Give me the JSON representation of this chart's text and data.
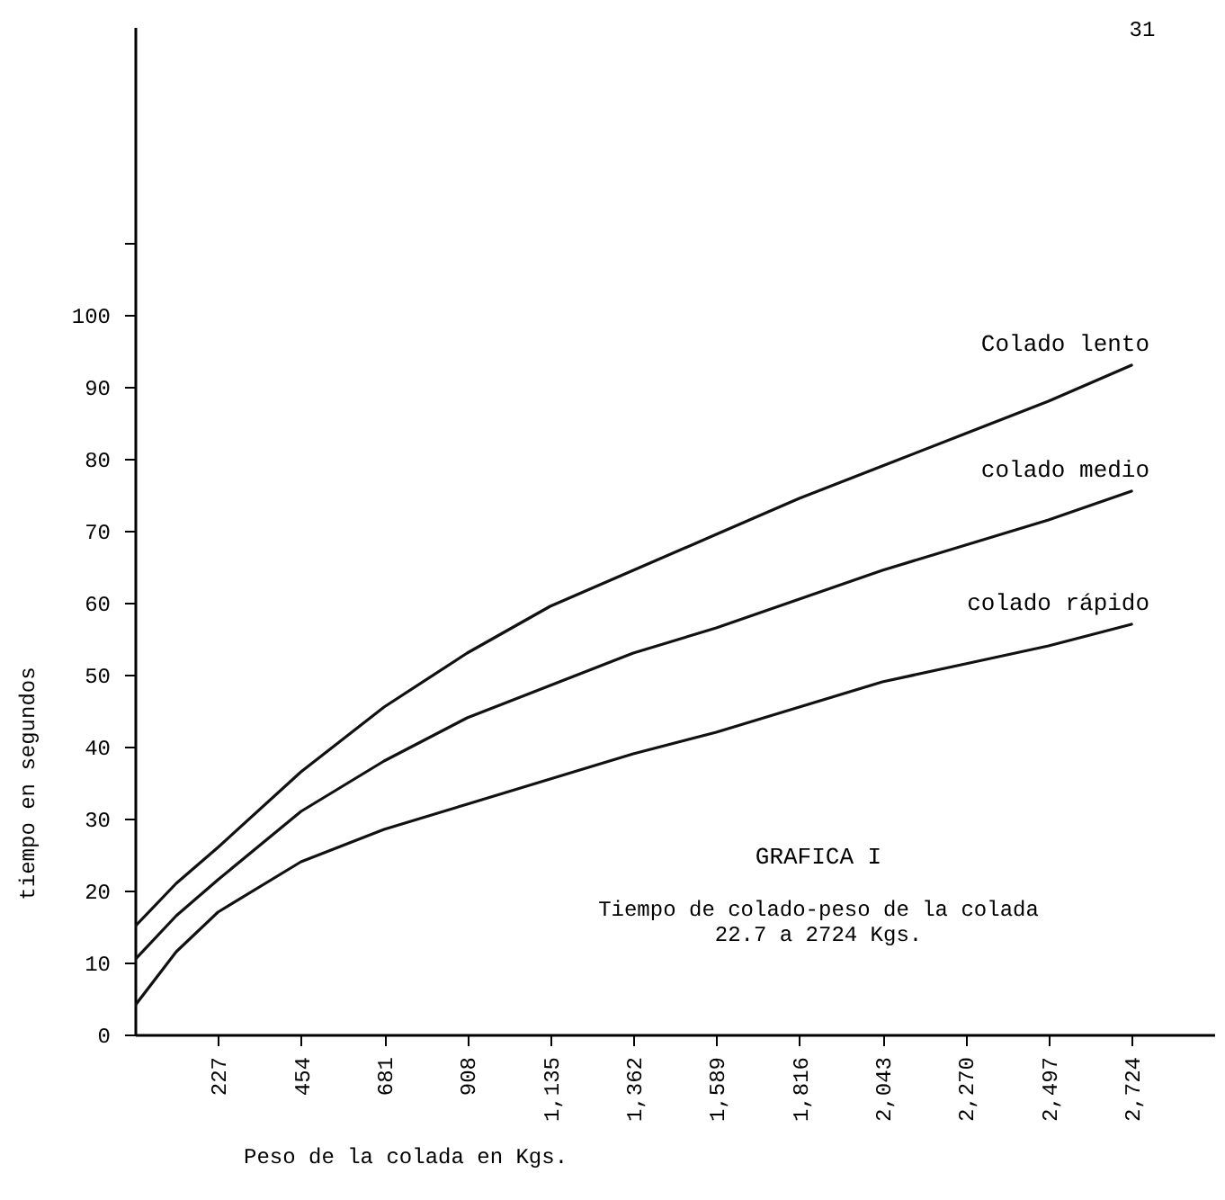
{
  "chart_data": {
    "type": "line",
    "title": "GRAFICA I",
    "subtitle": "Tiempo de colado-peso de la colada",
    "annotations": [
      "22.7 a 2724 Kgs.",
      "31"
    ],
    "xlabel": "Peso de la colada en Kgs.",
    "ylabel": "tiempo en segundos",
    "x": [
      0,
      113,
      227,
      454,
      681,
      908,
      1135,
      1362,
      1589,
      1816,
      2043,
      2270,
      2497,
      2724
    ],
    "series": [
      {
        "name": "Colado lento",
        "color": "#111111",
        "values": [
          15,
          21,
          26,
          36.5,
          45.5,
          53,
          59.5,
          64.5,
          69.5,
          74.5,
          79,
          83.5,
          88,
          93
        ]
      },
      {
        "name": "colado medio",
        "color": "#111111",
        "values": [
          10.4,
          16.5,
          21.5,
          31,
          38,
          44,
          48.5,
          53,
          56.5,
          60.5,
          64.5,
          68,
          71.5,
          75.5
        ]
      },
      {
        "name": "colado rápido",
        "color": "#111111",
        "values": [
          4,
          11.5,
          17,
          24,
          28.5,
          32,
          35.5,
          39,
          42,
          45.5,
          49,
          51.5,
          54,
          57
        ]
      }
    ],
    "xlim": [
      0,
      2950
    ],
    "xticks": [
      227,
      454,
      681,
      908,
      {
        "value": 1135,
        "label": "1,135"
      },
      {
        "value": 1362,
        "label": "1,362"
      },
      {
        "value": 1589,
        "label": "1,589"
      },
      {
        "value": 1816,
        "label": "1,816"
      },
      {
        "value": 2043,
        "label": "2,043"
      },
      {
        "value": 2270,
        "label": "2,270"
      },
      {
        "value": 2497,
        "label": "2,497"
      },
      {
        "value": 2724,
        "label": "2,724"
      }
    ],
    "ylim": [
      0,
      140
    ],
    "yticks": [
      0,
      10,
      20,
      30,
      40,
      50,
      60,
      70,
      80,
      90,
      100,
      {
        "value": 110,
        "label": null
      }
    ],
    "grid": false,
    "legend": false,
    "marker": "none",
    "line_style": "solid"
  }
}
